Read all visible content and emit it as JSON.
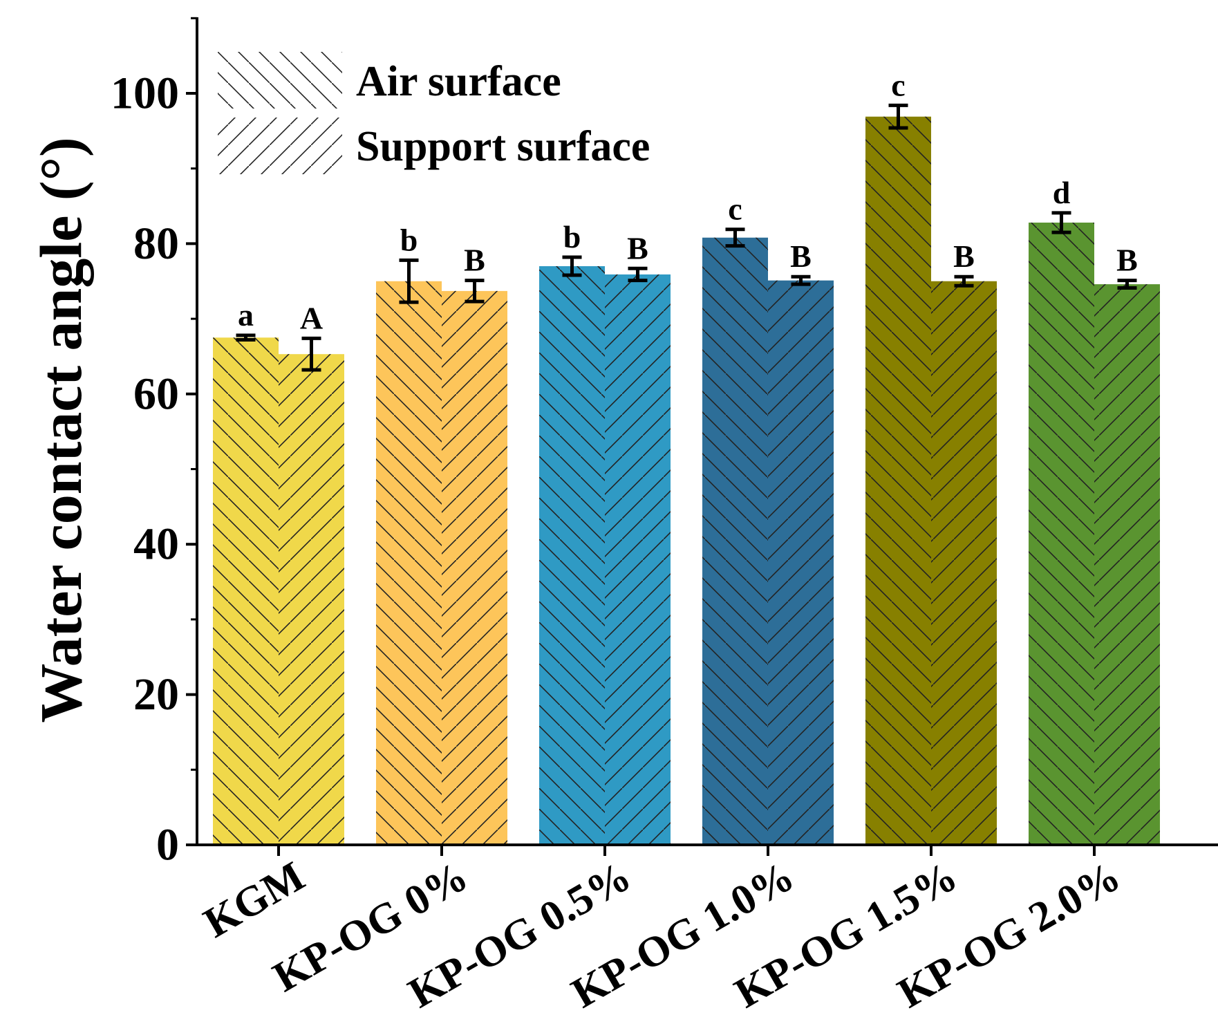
{
  "chart_data": {
    "type": "bar",
    "ylabel": "Water contact angle (°)",
    "xlabel": "",
    "ylim": [
      0,
      110
    ],
    "yticks": [
      0,
      20,
      40,
      60,
      80,
      100
    ],
    "categories": [
      "KGM",
      "KP-OG 0%",
      "KP-OG 0.5%",
      "KP-OG 1.0%",
      "KP-OG 1.5%",
      "KP-OG 2.0%"
    ],
    "category_colors": [
      "#f0d84a",
      "#fdc55a",
      "#2f9ac4",
      "#2d6e98",
      "#878000",
      "#5a9430"
    ],
    "series": [
      {
        "name": "Air surface",
        "pattern": "backslash-hatch",
        "values": [
          67.5,
          75.0,
          77.0,
          80.8,
          96.9,
          82.8
        ],
        "errors": [
          0.3,
          2.8,
          1.2,
          1.1,
          1.5,
          1.3
        ],
        "significance": [
          "a",
          "b",
          "b",
          "c",
          "c",
          "d"
        ]
      },
      {
        "name": "Support surface",
        "pattern": "slash-hatch",
        "values": [
          65.3,
          73.7,
          75.9,
          75.1,
          75.0,
          74.6
        ],
        "errors": [
          2.1,
          1.4,
          0.8,
          0.5,
          0.6,
          0.5
        ],
        "significance": [
          "A",
          "B",
          "B",
          "B",
          "B",
          "B"
        ]
      }
    ],
    "legend": {
      "position": "top-left"
    },
    "grid": false
  }
}
